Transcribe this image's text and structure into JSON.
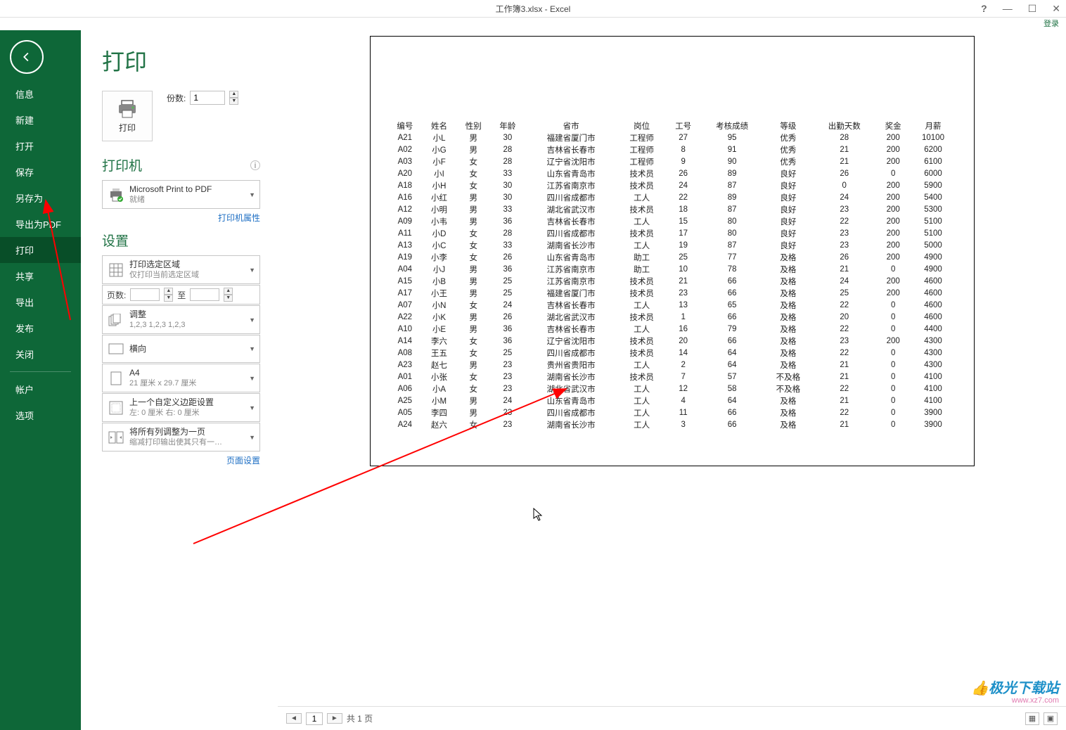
{
  "window": {
    "title": "工作簿3.xlsx - Excel",
    "login": "登录"
  },
  "sidebar": {
    "items": [
      "信息",
      "新建",
      "打开",
      "保存",
      "另存为",
      "导出为PDF",
      "打印",
      "共享",
      "导出",
      "发布",
      "关闭"
    ],
    "bottom": [
      "帐户",
      "选项"
    ],
    "active_index": 6
  },
  "page": {
    "title": "打印",
    "print_btn": "打印",
    "copies_label": "份数:",
    "copies_value": "1",
    "printer_title": "打印机",
    "printer_name": "Microsoft Print to PDF",
    "printer_status": "就绪",
    "printer_props": "打印机属性",
    "settings_title": "设置",
    "area_title": "打印选定区域",
    "area_sub": "仅打印当前选定区域",
    "page_label": "页数:",
    "page_to": "至",
    "collate_title": "调整",
    "collate_sub": "1,2,3    1,2,3    1,2,3",
    "orientation": "横向",
    "paper_title": "A4",
    "paper_sub": "21 厘米 x 29.7 厘米",
    "margin_title": "上一个自定义边距设置",
    "margin_sub": "左:  0 厘米   右:  0 厘米",
    "fit_title": "将所有列调整为一页",
    "fit_sub": "缩减打印输出使其只有一…",
    "page_setup": "页面设置"
  },
  "footer": {
    "page": "1",
    "of_label": "共 1 页"
  },
  "watermark": {
    "line1a": "极光",
    "line1b": "下载站",
    "line2": "www.xz7.com"
  },
  "table": {
    "headers": [
      "编号",
      "姓名",
      "性别",
      "年龄",
      "省市",
      "岗位",
      "工号",
      "考核成绩",
      "等级",
      "出勤天数",
      "奖金",
      "月薪"
    ],
    "rows": [
      [
        "A21",
        "小L",
        "男",
        "30",
        "福建省厦门市",
        "工程师",
        "27",
        "95",
        "优秀",
        "28",
        "200",
        "10100"
      ],
      [
        "A02",
        "小G",
        "男",
        "28",
        "吉林省长春市",
        "工程师",
        "8",
        "91",
        "优秀",
        "21",
        "200",
        "6200"
      ],
      [
        "A03",
        "小F",
        "女",
        "28",
        "辽宁省沈阳市",
        "工程师",
        "9",
        "90",
        "优秀",
        "21",
        "200",
        "6100"
      ],
      [
        "A20",
        "小I",
        "女",
        "33",
        "山东省青岛市",
        "技术员",
        "26",
        "89",
        "良好",
        "26",
        "0",
        "6000"
      ],
      [
        "A18",
        "小H",
        "女",
        "30",
        "江苏省南京市",
        "技术员",
        "24",
        "87",
        "良好",
        "0",
        "200",
        "5900"
      ],
      [
        "A16",
        "小红",
        "男",
        "30",
        "四川省成都市",
        "工人",
        "22",
        "89",
        "良好",
        "24",
        "200",
        "5400"
      ],
      [
        "A12",
        "小明",
        "男",
        "33",
        "湖北省武汉市",
        "技术员",
        "18",
        "87",
        "良好",
        "23",
        "200",
        "5300"
      ],
      [
        "A09",
        "小韦",
        "男",
        "36",
        "吉林省长春市",
        "工人",
        "15",
        "80",
        "良好",
        "22",
        "200",
        "5100"
      ],
      [
        "A11",
        "小D",
        "女",
        "28",
        "四川省成都市",
        "技术员",
        "17",
        "80",
        "良好",
        "23",
        "200",
        "5100"
      ],
      [
        "A13",
        "小C",
        "女",
        "33",
        "湖南省长沙市",
        "工人",
        "19",
        "87",
        "良好",
        "23",
        "200",
        "5000"
      ],
      [
        "A19",
        "小李",
        "女",
        "26",
        "山东省青岛市",
        "助工",
        "25",
        "77",
        "及格",
        "26",
        "200",
        "4900"
      ],
      [
        "A04",
        "小J",
        "男",
        "36",
        "江苏省南京市",
        "助工",
        "10",
        "78",
        "及格",
        "21",
        "0",
        "4900"
      ],
      [
        "A15",
        "小B",
        "男",
        "25",
        "江苏省南京市",
        "技术员",
        "21",
        "66",
        "及格",
        "24",
        "200",
        "4600"
      ],
      [
        "A17",
        "小王",
        "男",
        "25",
        "福建省厦门市",
        "技术员",
        "23",
        "66",
        "及格",
        "25",
        "200",
        "4600"
      ],
      [
        "A07",
        "小N",
        "女",
        "24",
        "吉林省长春市",
        "工人",
        "13",
        "65",
        "及格",
        "22",
        "0",
        "4600"
      ],
      [
        "A22",
        "小K",
        "男",
        "26",
        "湖北省武汉市",
        "技术员",
        "1",
        "66",
        "及格",
        "20",
        "0",
        "4600"
      ],
      [
        "A10",
        "小E",
        "男",
        "36",
        "吉林省长春市",
        "工人",
        "16",
        "79",
        "及格",
        "22",
        "0",
        "4400"
      ],
      [
        "A14",
        "李六",
        "女",
        "36",
        "辽宁省沈阳市",
        "技术员",
        "20",
        "66",
        "及格",
        "23",
        "200",
        "4300"
      ],
      [
        "A08",
        "王五",
        "女",
        "25",
        "四川省成都市",
        "技术员",
        "14",
        "64",
        "及格",
        "22",
        "0",
        "4300"
      ],
      [
        "A23",
        "赵七",
        "男",
        "23",
        "贵州省贵阳市",
        "工人",
        "2",
        "64",
        "及格",
        "21",
        "0",
        "4300"
      ],
      [
        "A01",
        "小张",
        "女",
        "23",
        "湖南省长沙市",
        "技术员",
        "7",
        "57",
        "不及格",
        "21",
        "0",
        "4100"
      ],
      [
        "A06",
        "小A",
        "女",
        "23",
        "湖北省武汉市",
        "工人",
        "12",
        "58",
        "不及格",
        "22",
        "0",
        "4100"
      ],
      [
        "A25",
        "小M",
        "男",
        "24",
        "山东省青岛市",
        "工人",
        "4",
        "64",
        "及格",
        "21",
        "0",
        "4100"
      ],
      [
        "A05",
        "李四",
        "男",
        "23",
        "四川省成都市",
        "工人",
        "11",
        "66",
        "及格",
        "22",
        "0",
        "3900"
      ],
      [
        "A24",
        "赵六",
        "女",
        "23",
        "湖南省长沙市",
        "工人",
        "3",
        "66",
        "及格",
        "21",
        "0",
        "3900"
      ]
    ]
  }
}
